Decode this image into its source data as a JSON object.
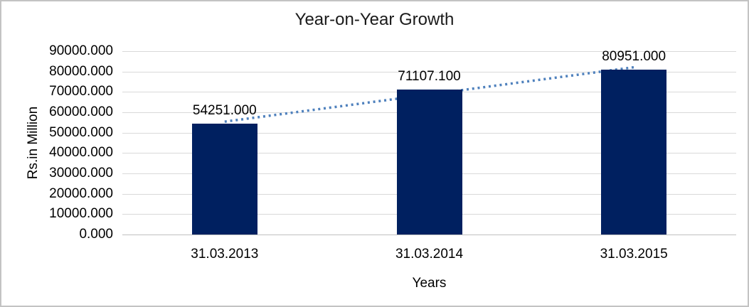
{
  "chart_data": {
    "type": "bar",
    "title": "Year-on-Year Growth",
    "xlabel": "Years",
    "ylabel": "Rs.in Million",
    "categories": [
      "31.03.2013",
      "31.03.2014",
      "31.03.2015"
    ],
    "values": [
      54251.0,
      71107.1,
      80951.0
    ],
    "data_labels": [
      "54251.000",
      "71107.100",
      "80951.000"
    ],
    "y_tick_labels": [
      "90000.000",
      "80000.000",
      "70000.000",
      "60000.000",
      "50000.000",
      "40000.000",
      "30000.000",
      "20000.000",
      "10000.000",
      "0.000"
    ],
    "ylim": [
      0,
      90000
    ],
    "y_step": 10000,
    "grid": true,
    "legend": "none",
    "bar_color": "#002060",
    "gridline_color": "#d9d9d9",
    "axis_line_color": "#bfbfbf",
    "label_color": "#000000",
    "trendline": {
      "type": "linear",
      "style": "dotted",
      "color": "#4f81bd",
      "start_value": 55400,
      "end_value": 82100
    }
  }
}
